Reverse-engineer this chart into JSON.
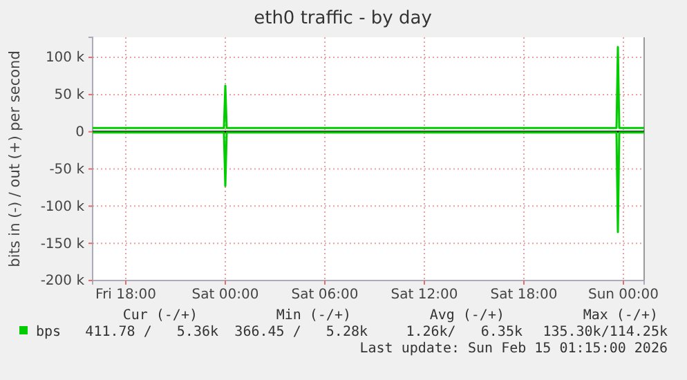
{
  "chart_data": {
    "type": "line",
    "title": "eth0 traffic - by day",
    "ylabel": "bits in (-) / out (+) per second",
    "xlim": [
      "2026-02-13T16:00",
      "2026-02-15T01:15"
    ],
    "xticks": [
      {
        "value": "2026-02-13T18:00",
        "label": "Fri 18:00"
      },
      {
        "value": "2026-02-14T00:00",
        "label": "Sat 00:00"
      },
      {
        "value": "2026-02-14T06:00",
        "label": "Sat 06:00"
      },
      {
        "value": "2026-02-14T12:00",
        "label": "Sat 12:00"
      },
      {
        "value": "2026-02-14T18:00",
        "label": "Sat 18:00"
      },
      {
        "value": "2026-02-15T00:00",
        "label": "Sun 00:00"
      }
    ],
    "ylim": [
      -200000,
      127000
    ],
    "yticks": [
      {
        "value": -200000,
        "label": "-200 k"
      },
      {
        "value": -150000,
        "label": "-150 k"
      },
      {
        "value": -100000,
        "label": "-100 k"
      },
      {
        "value": -50000,
        "label": "-50 k"
      },
      {
        "value": 0,
        "label": "0"
      },
      {
        "value": 50000,
        "label": "50 k"
      },
      {
        "value": 100000,
        "label": "100 k"
      }
    ],
    "grid": true,
    "legend": "bottom",
    "ref_lines": [
      {
        "axis": "y",
        "value": 0,
        "color": "#000000"
      }
    ],
    "series": [
      {
        "name": "bps",
        "color": "#00cc00",
        "x": [
          "2026-02-13T16:00",
          "2026-02-13T23:55",
          "2026-02-14T00:00",
          "2026-02-14T00:05",
          "2026-02-14T23:35",
          "2026-02-14T23:40",
          "2026-02-14T23:45",
          "2026-02-15T01:15"
        ],
        "values": [
          5000,
          5000,
          62000,
          5000,
          5000,
          114000,
          5000,
          5000
        ]
      },
      {
        "color": "#00cc00",
        "x": [
          "2026-02-13T16:00",
          "2026-02-13T23:55",
          "2026-02-14T00:00",
          "2026-02-14T00:05",
          "2026-02-14T23:35",
          "2026-02-14T23:40",
          "2026-02-14T23:45",
          "2026-02-15T01:15"
        ],
        "values": [
          -1000,
          -1000,
          -73000,
          -1000,
          -1000,
          -135000,
          -1000,
          -1000
        ]
      }
    ],
    "annotations": [
      "Cur (-/+)",
      "Min (-/+)",
      "Avg (-/+)",
      "Max (-/+)",
      "411.78 /   5.36k",
      "366.45 /   5.28k",
      "1.26k/   6.35k",
      "135.30k/114.25k",
      "Last update: Sun Feb 15 01:15:00 2026"
    ]
  }
}
